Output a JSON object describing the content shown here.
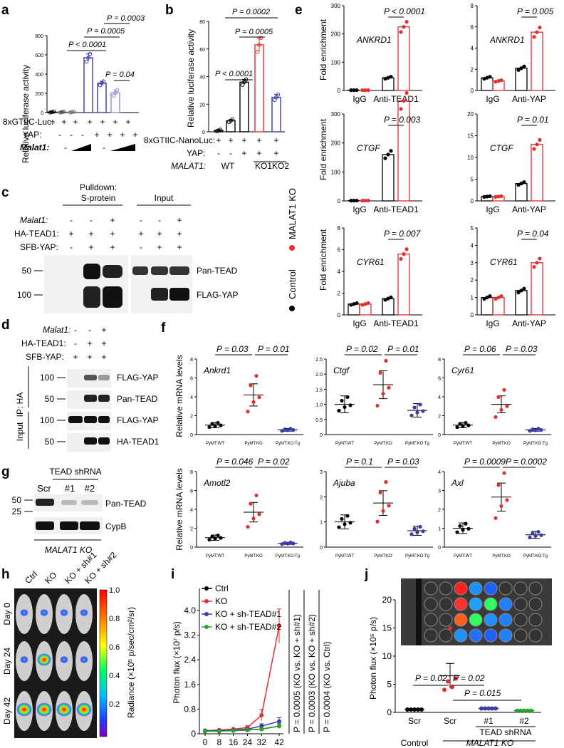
{
  "panel_letters": {
    "a": "a",
    "b": "b",
    "c": "c",
    "d": "d",
    "e": "e",
    "f": "f",
    "g": "g",
    "h": "h",
    "i": "i",
    "j": "j"
  },
  "colors": {
    "blue": "#3a3aa8",
    "red": "#e03030",
    "green": "#2ca02c",
    "black": "#000000",
    "lightblue": "#8f8fd8"
  },
  "panel_a": {
    "ylabel": "Relative luciferase activity",
    "yticks": [
      "0",
      "200",
      "400",
      "600",
      "800"
    ],
    "ylim": [
      0,
      800
    ],
    "stats": [
      "P < 0.0001",
      "P = 0.0005",
      "P = 0.0003",
      "P = 0.04"
    ],
    "rows": [
      {
        "label": "8xGTIIC-Luc:",
        "marks": [
          "+",
          "+",
          "+",
          "+",
          "+",
          "+",
          "+"
        ]
      },
      {
        "label": "YAP:",
        "marks": [
          "-",
          "-",
          "-",
          "+",
          "+",
          "+",
          "+"
        ]
      },
      {
        "label": "Malat1:",
        "marks": [
          "-",
          "",
          "",
          "-",
          "",
          ""
        ]
      }
    ],
    "chart_data": {
      "type": "bar",
      "values": [
        5,
        5,
        5,
        570,
        305,
        205,
        0
      ],
      "errors": [
        4,
        4,
        4,
        40,
        20,
        30,
        0
      ]
    }
  },
  "panel_b": {
    "ylabel": "Relative luciferase activity",
    "yticks": [
      "0",
      "20",
      "40",
      "60",
      "80"
    ],
    "ylim": [
      0,
      80
    ],
    "stats": [
      "P = 0.0002",
      "P = 0.0005",
      "P < 0.0001"
    ],
    "rows": [
      {
        "label": "8xGTIIC-NanoLuc:",
        "marks": [
          "+",
          "+",
          "+",
          "+",
          "+"
        ]
      },
      {
        "label": "YAP:",
        "marks": [
          "-",
          "-",
          "+",
          "+",
          "+"
        ]
      },
      {
        "label": "MALAT1:",
        "marks": [
          "WT",
          "",
          "KO1",
          "KO2"
        ]
      }
    ],
    "chart_data": {
      "type": "bar",
      "values": [
        1,
        8,
        36,
        63,
        25
      ],
      "errors": [
        0.5,
        1,
        2,
        5,
        2
      ]
    }
  },
  "panel_c": {
    "header_pulldown": "Pulldown:",
    "header_pulldown2": "S-protein",
    "header_input": "Input",
    "rows": [
      {
        "label": "Malat1:",
        "marks": [
          "-",
          "-",
          "+",
          "-",
          "-",
          "+"
        ]
      },
      {
        "label": "HA-TEAD1:",
        "marks": [
          "+",
          "+",
          "+",
          "+",
          "+",
          "+"
        ]
      },
      {
        "label": "SFB-YAP:",
        "marks": [
          "-",
          "+",
          "+",
          "-",
          "+",
          "+"
        ]
      }
    ],
    "mw": [
      "50",
      "100"
    ],
    "bands": [
      "Pan-TEAD",
      "FLAG-YAP"
    ]
  },
  "legend_e": {
    "control": "Control",
    "ko": "MALAT1 KO"
  },
  "panel_d": {
    "rows": [
      {
        "label": "Malat1:",
        "marks": [
          "-",
          "-",
          "+"
        ]
      },
      {
        "label": "HA-TEAD1:",
        "marks": [
          "-",
          "+",
          "+"
        ]
      },
      {
        "label": "SFB-YAP:",
        "marks": [
          "+",
          "+",
          "+"
        ]
      }
    ],
    "ip": "IP: HA",
    "input": "Input",
    "mw": [
      "100",
      "50",
      "100",
      "50"
    ],
    "bands": [
      "FLAG-YAP",
      "Pan-TEAD",
      "FLAG-YAP",
      "HA-TEAD1"
    ]
  },
  "panel_e": {
    "ylabel": "Fold enrichment",
    "xcats": [
      "IgG",
      "Anti-TEAD1",
      "Anti-YAP"
    ],
    "charts": [
      {
        "gene": "ANKRD1",
        "stat": "P < 0.0001",
        "yticks": [
          "0",
          "100",
          "200",
          "300"
        ],
        "ylim": [
          0,
          300
        ],
        "values": [
          1,
          1,
          45,
          225
        ]
      },
      {
        "gene": "ANKRD1",
        "stat": "P = 0.005",
        "yticks": [
          "0",
          "2",
          "4",
          "6",
          "8"
        ],
        "ylim": [
          0,
          8
        ],
        "values": [
          1.2,
          0.9,
          2.1,
          5.5
        ]
      },
      {
        "gene": "CTGF",
        "stat": "P = 0.003",
        "yticks": [
          "0",
          "100",
          "200",
          "300"
        ],
        "ylim": [
          0,
          300
        ],
        "values": [
          1,
          1,
          160,
          345
        ]
      },
      {
        "gene": "CTGF",
        "stat": "P = 0.01",
        "yticks": [
          "0",
          "5",
          "10",
          "15",
          "20"
        ],
        "ylim": [
          0,
          20
        ],
        "values": [
          1,
          1,
          4,
          13
        ]
      },
      {
        "gene": "CYR61",
        "stat": "P = 0.007",
        "yticks": [
          "0",
          "2",
          "4",
          "6",
          "8"
        ],
        "ylim": [
          0,
          8
        ],
        "values": [
          1,
          1,
          1.5,
          5.6
        ]
      },
      {
        "gene": "CYR61",
        "stat": "P = 0.04",
        "yticks": [
          "0",
          "1",
          "2",
          "3",
          "4",
          "5"
        ],
        "ylim": [
          0,
          5
        ],
        "values": [
          1,
          1,
          1.4,
          3
        ]
      }
    ]
  },
  "panel_f": {
    "ylabel": "Relative mRNA levels",
    "xcats": [
      "PyMT:WT",
      "PyMT:KO",
      "PyMT:KO:Tg"
    ],
    "charts": [
      {
        "gene": "Ankrd1",
        "stats": [
          "P = 0.03",
          "P = 0.01"
        ],
        "yticks": [
          "0",
          "2",
          "4",
          "6",
          "8"
        ],
        "ylim": [
          0,
          8
        ],
        "means": [
          1,
          4.2,
          0.5
        ]
      },
      {
        "gene": "Ctgf",
        "stats": [
          "P = 0.02",
          "P = 0.01"
        ],
        "yticks": [
          "0",
          "0.5",
          "1.0",
          "1.5",
          "2.0",
          "2.5"
        ],
        "ylim": [
          0,
          2.5
        ],
        "means": [
          1,
          1.65,
          0.8
        ]
      },
      {
        "gene": "Cyr61",
        "stats": [
          "P = 0.06",
          "P = 0.03"
        ],
        "yticks": [
          "0",
          "2",
          "4",
          "6",
          "8"
        ],
        "ylim": [
          0,
          8
        ],
        "means": [
          1,
          3.2,
          0.5
        ]
      },
      {
        "gene": "Amotl2",
        "stats": [
          "P = 0.046",
          "P = 0.02"
        ],
        "yticks": [
          "0",
          "2",
          "4",
          "6",
          "8"
        ],
        "ylim": [
          0,
          8
        ],
        "means": [
          1,
          3.7,
          0.4
        ]
      },
      {
        "gene": "Ajuba",
        "stats": [
          "P = 0.1",
          "P = 0.03"
        ],
        "yticks": [
          "0",
          "1",
          "2",
          "3"
        ],
        "ylim": [
          0,
          3
        ],
        "means": [
          1,
          1.75,
          0.65
        ]
      },
      {
        "gene": "Axl",
        "stats": [
          "P = 0.0009",
          "P = 0.0002"
        ],
        "yticks": [
          "0",
          "1",
          "2",
          "3",
          "4"
        ],
        "ylim": [
          0,
          4
        ],
        "means": [
          1,
          2.65,
          0.65
        ]
      }
    ]
  },
  "panel_g": {
    "header": "TEAD shRNA",
    "lanes": [
      "Scr",
      "#1",
      "#2"
    ],
    "mw": [
      "50",
      "25"
    ],
    "bands": [
      "Pan-TEAD",
      "CypB"
    ],
    "footer": "MALAT1 KO"
  },
  "panel_h": {
    "cols": [
      "Ctrl",
      "KO",
      "KO + sh#1",
      "KO + sh#2"
    ],
    "rows": [
      "Day 0",
      "Day 24",
      "Day 42"
    ],
    "cbar_label": "Radiance (×10⁵ p/sec/cm²/sr)",
    "cbar_ticks": [
      "1.0",
      "0.8",
      "0.6",
      "0.4",
      "0.2"
    ]
  },
  "panel_i": {
    "ylabel": "Photon flux (×10⁷ p/s)",
    "yticks": [
      "0",
      "0.8",
      "1.6",
      "2.4",
      "3.2",
      "4.0"
    ],
    "xticks": [
      "0",
      "8",
      "16",
      "24",
      "32",
      "42"
    ],
    "stats": [
      "P = 0.0005 (KO vs. KO + sh#1)",
      "P = 0.0003 (KO vs. KO + sh#2)",
      "P = 0.0004 (KO vs. Ctrl)"
    ],
    "chart_data": {
      "type": "line",
      "x": [
        0,
        8,
        16,
        24,
        32,
        42
      ],
      "ylim": [
        0,
        4.2
      ],
      "series": [
        {
          "name": "Ctrl",
          "values": [
            0.1,
            0.1,
            0.1,
            0.12,
            0.15,
            0.25
          ]
        },
        {
          "name": "KO",
          "values": [
            0.1,
            0.12,
            0.15,
            0.2,
            0.6,
            3.5
          ]
        },
        {
          "name": "KO + sh-TEAD#1",
          "values": [
            0.1,
            0.1,
            0.12,
            0.15,
            0.25,
            0.4
          ]
        },
        {
          "name": "KO + sh-TEAD#2",
          "values": [
            0.08,
            0.08,
            0.1,
            0.12,
            0.15,
            0.25
          ]
        }
      ]
    }
  },
  "panel_j": {
    "ylabel": "Photon flux (×10⁵ p/s)",
    "yticks": [
      "0",
      "5",
      "10",
      "15",
      "20"
    ],
    "ylim": [
      0,
      20
    ],
    "stats": [
      "P = 0.02",
      "P = 0.02",
      "P = 0.015"
    ],
    "xcats": [
      "Scr",
      "Scr",
      "#1",
      "#2"
    ],
    "group_tead": "TEAD shRNA",
    "group_control": "Control",
    "group_ko": "MALAT1 KO",
    "chart_data": {
      "type": "scatter",
      "means": [
        0.5,
        6.5,
        0.7,
        0.3
      ]
    }
  }
}
